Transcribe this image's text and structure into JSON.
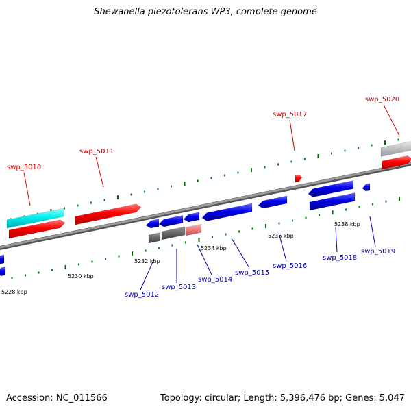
{
  "header": {
    "title": "Shewanella piezotolerans WP3, complete genome"
  },
  "footer": {
    "accession": "Accession: NC_011566",
    "summary": "Topology: circular; Length: 5,396,476 bp; Genes: 5,047"
  },
  "colors": {
    "backbone": "#808080",
    "forward_cds": "#ff0000",
    "reverse_cds": "#0000ee",
    "rna_gene": "#00e5ee",
    "pseudo_gene": "#707070",
    "other_gene": "#bbbbbb",
    "partial_gene": "#f08080",
    "tick_major": "#006400",
    "tick_minor": "#008000"
  },
  "axis": {
    "unit": "kbp",
    "scale_labels": [
      "5228 kbp",
      "5230 kbp",
      "5232 kbp",
      "5234 kbp",
      "5236 kbp",
      "5238 kbp"
    ]
  },
  "genes": {
    "forward_strand": [
      {
        "locus_tag": "swp_5010"
      },
      {
        "locus_tag": "swp_5011"
      },
      {
        "locus_tag": "swp_5017"
      },
      {
        "locus_tag": "swp_5020"
      }
    ],
    "reverse_strand": [
      {
        "locus_tag": "swp_5012"
      },
      {
        "locus_tag": "swp_5013"
      },
      {
        "locus_tag": "swp_5014"
      },
      {
        "locus_tag": "swp_5015"
      },
      {
        "locus_tag": "swp_5016"
      },
      {
        "locus_tag": "swp_5018"
      },
      {
        "locus_tag": "swp_5019"
      }
    ]
  }
}
